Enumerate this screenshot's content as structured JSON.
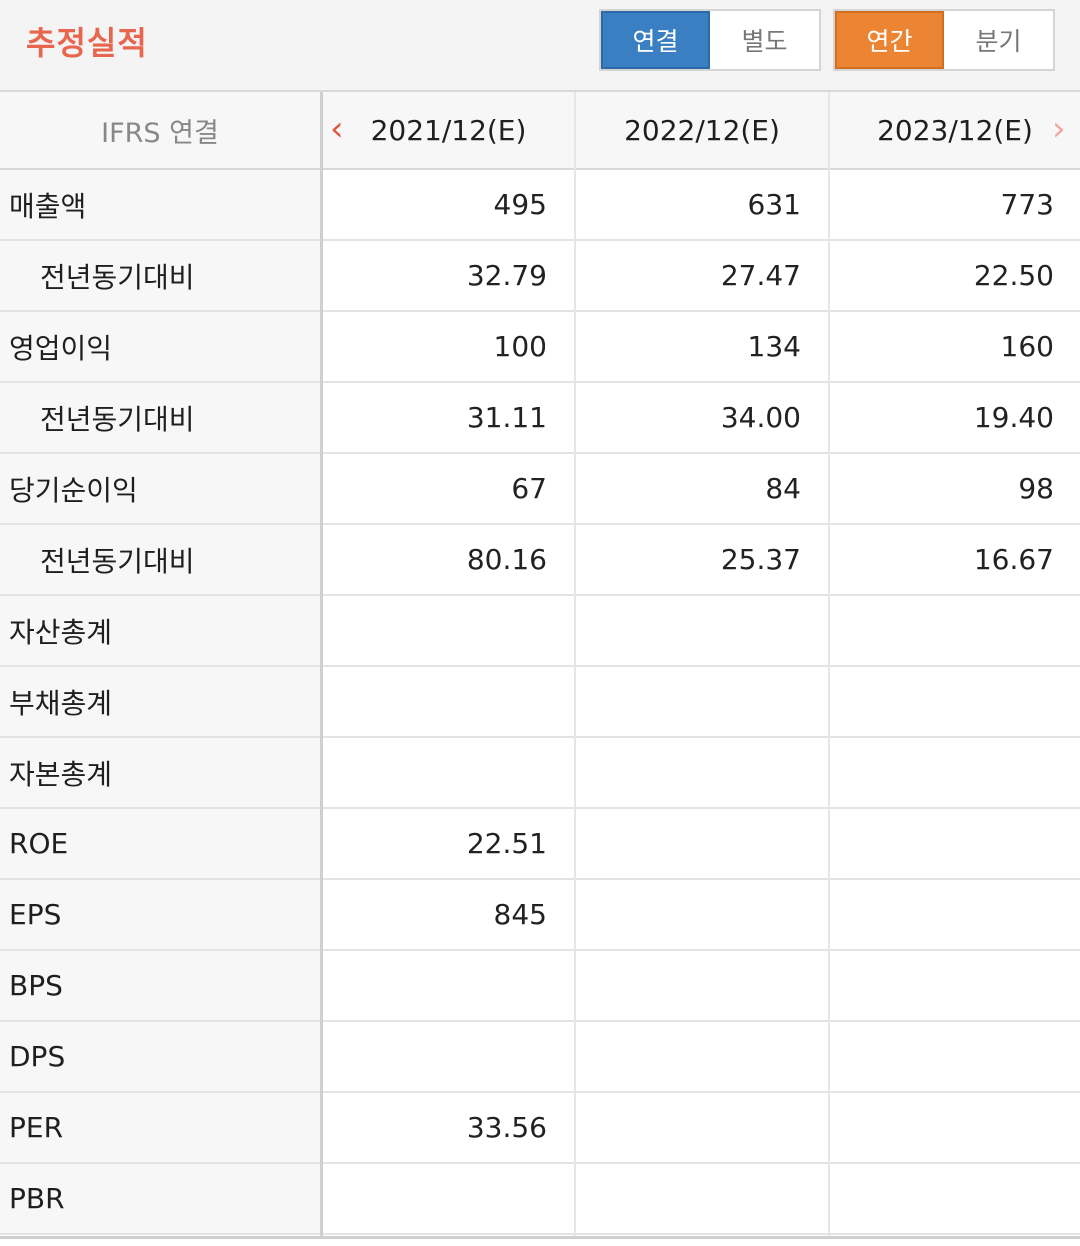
{
  "header": {
    "title": "추정실적",
    "seg1": [
      "연결",
      "별도"
    ],
    "seg2": [
      "연간",
      "분기"
    ]
  },
  "table": {
    "header": [
      "IFRS 연결",
      "2021/12(E)",
      "2022/12(E)",
      "2023/12(E)"
    ],
    "rows": [
      {
        "label": "매출액",
        "sub": false,
        "v": [
          "495",
          "631",
          "773"
        ]
      },
      {
        "label": "전년동기대비",
        "sub": true,
        "v": [
          "32.79",
          "27.47",
          "22.50"
        ]
      },
      {
        "label": "영업이익",
        "sub": false,
        "v": [
          "100",
          "134",
          "160"
        ]
      },
      {
        "label": "전년동기대비",
        "sub": true,
        "v": [
          "31.11",
          "34.00",
          "19.40"
        ]
      },
      {
        "label": "당기순이익",
        "sub": false,
        "v": [
          "67",
          "84",
          "98"
        ]
      },
      {
        "label": "전년동기대비",
        "sub": true,
        "v": [
          "80.16",
          "25.37",
          "16.67"
        ]
      },
      {
        "label": "자산총계",
        "sub": false,
        "v": [
          "",
          "",
          ""
        ]
      },
      {
        "label": "부채총계",
        "sub": false,
        "v": [
          "",
          "",
          ""
        ]
      },
      {
        "label": "자본총계",
        "sub": false,
        "v": [
          "",
          "",
          ""
        ]
      },
      {
        "label": "ROE",
        "sub": false,
        "v": [
          "22.51",
          "",
          ""
        ]
      },
      {
        "label": "EPS",
        "sub": false,
        "v": [
          "845",
          "",
          ""
        ]
      },
      {
        "label": "BPS",
        "sub": false,
        "v": [
          "",
          "",
          ""
        ]
      },
      {
        "label": "DPS",
        "sub": false,
        "v": [
          "",
          "",
          ""
        ]
      },
      {
        "label": "PER",
        "sub": false,
        "v": [
          "33.56",
          "",
          ""
        ]
      },
      {
        "label": "PBR",
        "sub": false,
        "v": [
          "",
          "",
          ""
        ]
      }
    ]
  },
  "icons": {
    "prev": "chevron-left-icon",
    "next": "chevron-right-icon"
  },
  "colors": {
    "title": "#e8664e",
    "active_blue": "#3a7fc2",
    "active_orange": "#ec8533",
    "prev_arrow": "#e0553e"
  }
}
